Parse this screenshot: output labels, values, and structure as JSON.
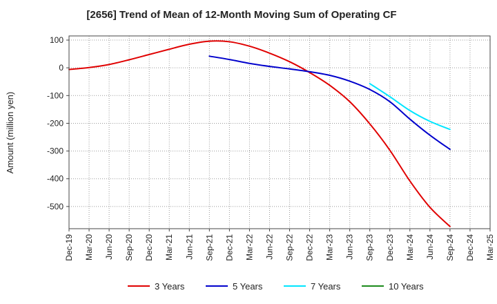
{
  "chart_data": {
    "type": "line",
    "title": "[2656]  Trend of Mean of 12-Month Moving Sum of Operating CF",
    "xlabel": "",
    "ylabel": "Amount (million yen)",
    "ylim": [
      -580,
      115
    ],
    "yticks": [
      100,
      0,
      -100,
      -200,
      -300,
      -400,
      -500
    ],
    "categories": [
      "Dec-19",
      "Mar-20",
      "Jun-20",
      "Sep-20",
      "Dec-20",
      "Mar-21",
      "Jun-21",
      "Sep-21",
      "Dec-21",
      "Mar-22",
      "Jun-22",
      "Sep-22",
      "Dec-22",
      "Mar-23",
      "Jun-23",
      "Sep-23",
      "Dec-23",
      "Mar-24",
      "Jun-24",
      "Sep-24",
      "Dec-24",
      "Mar-25"
    ],
    "grid": true,
    "legend_position": "bottom",
    "series": [
      {
        "name": "3 Years",
        "color": "#e00000",
        "values": [
          -6,
          1,
          12,
          29,
          48,
          67,
          85,
          96,
          94,
          78,
          53,
          22,
          -17,
          -63,
          -122,
          -202,
          -297,
          -408,
          -503,
          -572,
          null,
          null
        ]
      },
      {
        "name": "5 Years",
        "color": "#0000cc",
        "values": [
          null,
          null,
          null,
          null,
          null,
          null,
          null,
          42,
          30,
          16,
          5,
          -4,
          -14,
          -27,
          -48,
          -78,
          -122,
          -185,
          -243,
          -294,
          null,
          null
        ]
      },
      {
        "name": "7 Years",
        "color": "#00e5ff",
        "values": [
          null,
          null,
          null,
          null,
          null,
          null,
          null,
          null,
          null,
          null,
          null,
          null,
          null,
          null,
          null,
          -57,
          -104,
          -154,
          -193,
          -222,
          null,
          null
        ]
      },
      {
        "name": "10 Years",
        "color": "#1a8a1a",
        "values": [
          null,
          null,
          null,
          null,
          null,
          null,
          null,
          null,
          null,
          null,
          null,
          null,
          null,
          null,
          null,
          null,
          null,
          null,
          null,
          null,
          null,
          null
        ]
      }
    ]
  }
}
